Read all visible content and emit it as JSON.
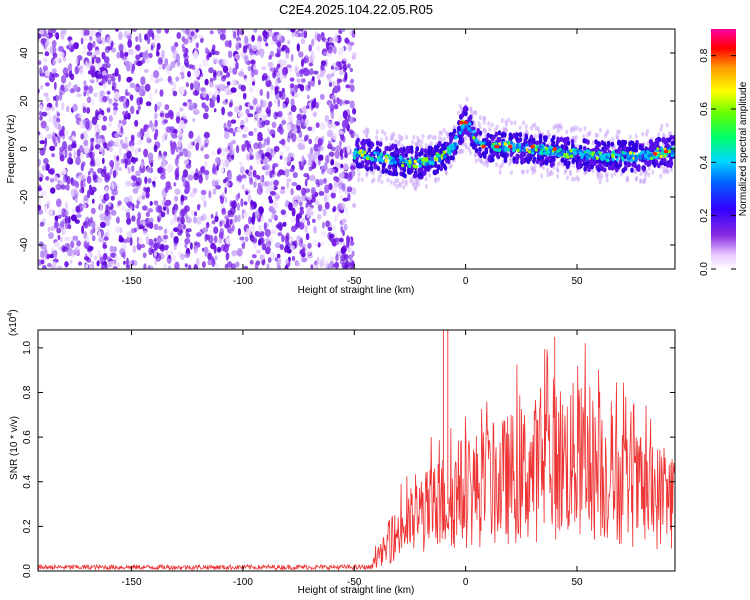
{
  "title": "C2E4.2025.104.22.05.R05",
  "chart_data": [
    {
      "type": "heatmap",
      "xlabel": "Height of straight line (km)",
      "ylabel": "Frequency (Hz)",
      "xlim": [
        -192,
        94
      ],
      "ylim": [
        -50,
        50
      ],
      "xticks": [
        -150,
        -100,
        -50,
        0,
        50
      ],
      "yticks": [
        -40,
        -20,
        0,
        20,
        40
      ],
      "colorbar": {
        "label": "Normalized spectral amplitude",
        "range": [
          0.0,
          0.9
        ],
        "ticks": [
          "0.0",
          "0.2",
          "0.4",
          "0.6",
          "0.8"
        ]
      },
      "noise_region_x": [
        -192,
        -50
      ],
      "signal_ridge": {
        "x": [
          -50,
          -40,
          -30,
          -20,
          -10,
          -5,
          0,
          5,
          10,
          20,
          30,
          40,
          50,
          60,
          70,
          80,
          90,
          94
        ],
        "y": [
          -2,
          -3,
          -5,
          -6,
          -3,
          2,
          12,
          4,
          1,
          1,
          0,
          -1,
          -2,
          -3,
          -3,
          -3,
          -1,
          -1
        ]
      }
    },
    {
      "type": "line",
      "xlabel": "Height of straight line (km)",
      "ylabel": "SNR (10 * v/v)",
      "yscale_label": "(x10",
      "yscale_exp": "4",
      "xlim": [
        -192,
        94
      ],
      "ylim": [
        0.0,
        1.08
      ],
      "xticks": [
        -150,
        -100,
        -50,
        0,
        50
      ],
      "yticks": [
        0.0,
        0.2,
        0.4,
        0.6,
        0.8,
        1.0
      ],
      "color": "#ee3333",
      "envelope": {
        "x": [
          -192,
          -45,
          -40,
          -35,
          -30,
          -20,
          -10,
          0,
          10,
          20,
          30,
          40,
          50,
          60,
          70,
          80,
          94
        ],
        "y": [
          0.02,
          0.02,
          0.06,
          0.12,
          0.2,
          0.28,
          0.34,
          0.4,
          0.42,
          0.46,
          0.5,
          0.55,
          0.55,
          0.5,
          0.44,
          0.38,
          0.36
        ]
      },
      "peaks": [
        {
          "x": -10,
          "y": 1.08
        },
        {
          "x": -8,
          "y": 1.08
        },
        {
          "x": 40,
          "y": 1.05
        }
      ]
    }
  ]
}
